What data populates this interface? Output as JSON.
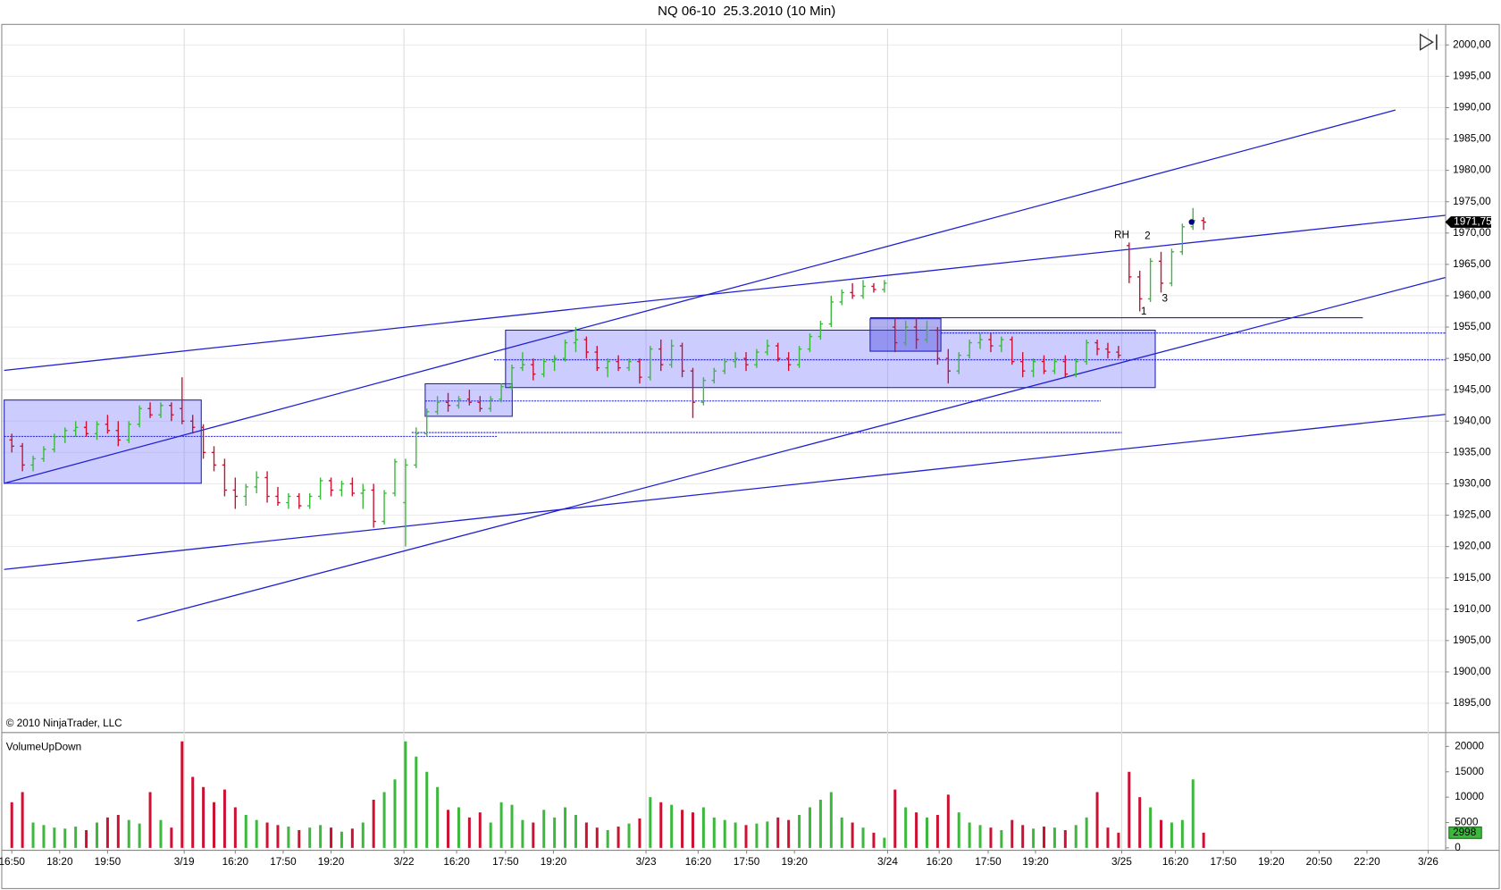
{
  "chart_data": [
    {
      "type": "ohlc",
      "title": "NQ 06-10  25.3.2010 (10 Min)",
      "watermark": "© 2010 NinjaTrader, LLC",
      "up_color": "#3cb83c",
      "down_color": "#cc1133",
      "grid": true,
      "xlim": [
        -1.8,
        269.4
      ],
      "ylim": [
        1890.4,
        2003.2
      ],
      "yticks": [
        {
          "value": 1895,
          "label": "1895,00"
        },
        {
          "value": 1900,
          "label": "1900,00"
        },
        {
          "value": 1905,
          "label": "1905,00"
        },
        {
          "value": 1910,
          "label": "1910,00"
        },
        {
          "value": 1915,
          "label": "1915,00"
        },
        {
          "value": 1920,
          "label": "1920,00"
        },
        {
          "value": 1925,
          "label": "1925,00"
        },
        {
          "value": 1930,
          "label": "1930,00"
        },
        {
          "value": 1935,
          "label": "1935,00"
        },
        {
          "value": 1940,
          "label": "1940,00"
        },
        {
          "value": 1945,
          "label": "1945,00"
        },
        {
          "value": 1950,
          "label": "1950,00"
        },
        {
          "value": 1955,
          "label": "1955,00"
        },
        {
          "value": 1960,
          "label": "1960,00"
        },
        {
          "value": 1965,
          "label": "1965,00"
        },
        {
          "value": 1970,
          "label": "1970,00"
        },
        {
          "value": 1975,
          "label": "1975,00"
        },
        {
          "value": 1980,
          "label": "1980,00"
        },
        {
          "value": 1985,
          "label": "1985,00"
        },
        {
          "value": 1990,
          "label": "1990,00"
        },
        {
          "value": 1995,
          "label": "1995,00"
        },
        {
          "value": 2000,
          "label": "2000,00"
        }
      ],
      "xticks": [
        {
          "value": 0,
          "label": "16:50"
        },
        {
          "value": 9,
          "label": "18:20"
        },
        {
          "value": 18,
          "label": "19:50"
        },
        {
          "value": 32.4,
          "label": "3/19"
        },
        {
          "value": 42,
          "label": "16:20"
        },
        {
          "value": 51,
          "label": "17:50"
        },
        {
          "value": 60,
          "label": "19:20"
        },
        {
          "value": 73.7,
          "label": "3/22"
        },
        {
          "value": 83.6,
          "label": "16:20"
        },
        {
          "value": 92.8,
          "label": "17:50"
        },
        {
          "value": 101.8,
          "label": "19:20"
        },
        {
          "value": 119.2,
          "label": "3/23"
        },
        {
          "value": 129,
          "label": "16:20"
        },
        {
          "value": 138.1,
          "label": "17:50"
        },
        {
          "value": 147.1,
          "label": "19:20"
        },
        {
          "value": 164.6,
          "label": "3/24"
        },
        {
          "value": 174.3,
          "label": "16:20"
        },
        {
          "value": 183.5,
          "label": "17:50"
        },
        {
          "value": 192.4,
          "label": "19:20"
        },
        {
          "value": 208.6,
          "label": "3/25"
        },
        {
          "value": 218.7,
          "label": "16:20"
        },
        {
          "value": 227.7,
          "label": "17:50"
        },
        {
          "value": 236.7,
          "label": "19:20"
        },
        {
          "value": 245.7,
          "label": "20:50"
        },
        {
          "value": 254.7,
          "label": "22:20"
        },
        {
          "value": 266.2,
          "label": "3/26"
        }
      ],
      "last_value": {
        "value": 1971.75,
        "label": "1971,75"
      },
      "annotations": [
        "RH",
        "1",
        "2",
        "3"
      ],
      "x": [
        0,
        2,
        4,
        6,
        8,
        10,
        12,
        14,
        16,
        18,
        20,
        22,
        24,
        26,
        28,
        30,
        32,
        34,
        36,
        38,
        40,
        42,
        44,
        46,
        48,
        50,
        52,
        54,
        56,
        58,
        60,
        62,
        64,
        66,
        68,
        70,
        72,
        74,
        76,
        78,
        80,
        82,
        84,
        86,
        88,
        90,
        92,
        94,
        96,
        98,
        100,
        102,
        104,
        106,
        108,
        110,
        112,
        114,
        116,
        118,
        120,
        122,
        124,
        126,
        128,
        130,
        132,
        134,
        136,
        138,
        140,
        142,
        144,
        146,
        148,
        150,
        152,
        154,
        156,
        158,
        160,
        162,
        164,
        166,
        168,
        170,
        172,
        174,
        176,
        178,
        180,
        182,
        184,
        186,
        188,
        190,
        192,
        194,
        196,
        198,
        200,
        202,
        204,
        206,
        208,
        210,
        212,
        214,
        216,
        218,
        220,
        222,
        224
      ],
      "bars": [
        [
          1937,
          1938,
          1935,
          1936
        ],
        [
          1936,
          1936.5,
          1932,
          1933
        ],
        [
          1933,
          1934.5,
          1932,
          1934
        ],
        [
          1934,
          1936,
          1933.5,
          1935.5
        ],
        [
          1935.5,
          1938,
          1935,
          1937.5
        ],
        [
          1937.5,
          1939,
          1936.5,
          1938.5
        ],
        [
          1938.5,
          1940,
          1937.5,
          1939
        ],
        [
          1939,
          1940,
          1937.5,
          1938
        ],
        [
          1938,
          1940,
          1937,
          1939.5
        ],
        [
          1939.5,
          1941,
          1938,
          1938.5
        ],
        [
          1938.5,
          1940,
          1936,
          1937
        ],
        [
          1937,
          1940,
          1936.5,
          1939.5
        ],
        [
          1939.5,
          1942.5,
          1939,
          1942
        ],
        [
          1942,
          1943,
          1940.5,
          1941
        ],
        [
          1941,
          1943,
          1940.5,
          1942.5
        ],
        [
          1942.5,
          1943,
          1940,
          1941
        ],
        [
          1942,
          1947,
          1939.5,
          1940
        ],
        [
          1940,
          1941,
          1938,
          1939
        ],
        [
          1939,
          1939.5,
          1934,
          1935
        ],
        [
          1935,
          1936,
          1932,
          1933
        ],
        [
          1933,
          1934,
          1928,
          1929
        ],
        [
          1929,
          1931,
          1926,
          1928
        ],
        [
          1928,
          1930,
          1926.5,
          1929.5
        ],
        [
          1929.5,
          1932,
          1928.5,
          1931
        ],
        [
          1931,
          1932,
          1927,
          1928
        ],
        [
          1928,
          1929.5,
          1926.5,
          1927
        ],
        [
          1927,
          1928.5,
          1926,
          1928
        ],
        [
          1928,
          1928.5,
          1926,
          1926.5
        ],
        [
          1926.5,
          1928.5,
          1926,
          1928
        ],
        [
          1928,
          1931,
          1927.5,
          1930.5
        ],
        [
          1930.5,
          1931,
          1928,
          1929
        ],
        [
          1929,
          1930.5,
          1928,
          1930
        ],
        [
          1930,
          1931,
          1928,
          1928.5
        ],
        [
          1928.5,
          1930,
          1926,
          1929
        ],
        [
          1929,
          1930,
          1923,
          1924
        ],
        [
          1924,
          1929,
          1923.5,
          1928.5
        ],
        [
          1928.5,
          1934,
          1928,
          1933.5
        ],
        [
          1927,
          1934,
          1920,
          1933
        ],
        [
          1933,
          1939,
          1932.5,
          1938
        ],
        [
          1938,
          1942,
          1937.5,
          1941.5
        ],
        [
          1941.5,
          1944,
          1941,
          1943
        ],
        [
          1943,
          1944.5,
          1941.5,
          1942.5
        ],
        [
          1942.5,
          1944,
          1942,
          1943.5
        ],
        [
          1943.5,
          1945,
          1942.5,
          1943
        ],
        [
          1943,
          1944,
          1941.5,
          1942
        ],
        [
          1942,
          1944,
          1941.5,
          1943.5
        ],
        [
          1943.5,
          1946,
          1943,
          1945.5
        ],
        [
          1945.5,
          1949,
          1945,
          1948.5
        ],
        [
          1948.5,
          1951,
          1948,
          1949
        ],
        [
          1949,
          1950,
          1946.5,
          1947.5
        ],
        [
          1947.5,
          1950,
          1947,
          1949.5
        ],
        [
          1949.5,
          1950.5,
          1948,
          1950
        ],
        [
          1950,
          1953,
          1949.5,
          1952.5
        ],
        [
          1952.5,
          1955,
          1951,
          1953
        ],
        [
          1953,
          1953.5,
          1950,
          1951
        ],
        [
          1951,
          1952,
          1948,
          1948.5
        ],
        [
          1948.5,
          1950,
          1947,
          1949.5
        ],
        [
          1949.5,
          1950.5,
          1948,
          1948.5
        ],
        [
          1948.5,
          1950,
          1948,
          1949.5
        ],
        [
          1949.5,
          1950,
          1946,
          1947
        ],
        [
          1947,
          1952,
          1946.5,
          1951.5
        ],
        [
          1951.5,
          1953,
          1948,
          1949
        ],
        [
          1949,
          1953,
          1948.5,
          1952
        ],
        [
          1952,
          1952.5,
          1947,
          1948
        ],
        [
          1948,
          1948.5,
          1940.5,
          1943
        ],
        [
          1943,
          1947,
          1942.5,
          1946.5
        ],
        [
          1946.5,
          1948.5,
          1946,
          1948
        ],
        [
          1948,
          1950,
          1947.5,
          1949.5
        ],
        [
          1949.5,
          1951,
          1948.5,
          1950
        ],
        [
          1950,
          1951,
          1948,
          1949
        ],
        [
          1949,
          1951.5,
          1948.5,
          1951
        ],
        [
          1951,
          1953,
          1950.5,
          1952
        ],
        [
          1952,
          1952.5,
          1949.5,
          1950
        ],
        [
          1950,
          1951,
          1948,
          1949
        ],
        [
          1949,
          1952,
          1948.5,
          1951.5
        ],
        [
          1951.5,
          1954,
          1951,
          1953.5
        ],
        [
          1953.5,
          1956,
          1953,
          1955.5
        ],
        [
          1955.5,
          1960,
          1955,
          1959
        ],
        [
          1959,
          1961,
          1958.5,
          1960.5
        ],
        [
          1960.5,
          1962,
          1959.5,
          1960
        ],
        [
          1960,
          1962.5,
          1959.5,
          1961.5
        ],
        [
          1961.5,
          1962,
          1960.5,
          1961
        ],
        [
          1961,
          1962.5,
          1960.5,
          1962
        ],
        [
          1955,
          1956.5,
          1951,
          1952.5
        ],
        [
          1952.5,
          1956,
          1952,
          1955
        ],
        [
          1955,
          1956.5,
          1951.5,
          1953
        ],
        [
          1953,
          1956,
          1952.5,
          1954.5
        ],
        [
          1954.5,
          1955,
          1949,
          1950
        ],
        [
          1950,
          1951.5,
          1946,
          1948
        ],
        [
          1948,
          1951,
          1947.5,
          1950.5
        ],
        [
          1950.5,
          1953,
          1950,
          1952.5
        ],
        [
          1952.5,
          1954,
          1951.5,
          1953
        ],
        [
          1953,
          1954,
          1951,
          1952
        ],
        [
          1952,
          1953.5,
          1951,
          1953
        ],
        [
          1953,
          1953.5,
          1949,
          1949.5
        ],
        [
          1949.5,
          1951,
          1947,
          1948
        ],
        [
          1948,
          1950,
          1947,
          1949.5
        ],
        [
          1949.5,
          1950.5,
          1947.5,
          1948
        ],
        [
          1948,
          1950,
          1947.5,
          1949.5
        ],
        [
          1949.5,
          1950.5,
          1947,
          1947.5
        ],
        [
          1947.5,
          1950,
          1947,
          1949.5
        ],
        [
          1949.5,
          1953,
          1949,
          1952.5
        ],
        [
          1952.5,
          1953,
          1950.5,
          1951.5
        ],
        [
          1951.5,
          1952.5,
          1950,
          1951
        ],
        [
          1951,
          1952,
          1950,
          1950.5
        ],
        [
          1968,
          1968.5,
          1962,
          1963
        ],
        [
          1963,
          1964,
          1957.5,
          1959.5
        ],
        [
          1959.5,
          1966,
          1959,
          1965.5
        ],
        [
          1965.5,
          1967,
          1960.5,
          1962
        ],
        [
          1962,
          1967.5,
          1961.5,
          1967
        ],
        [
          1967,
          1971.5,
          1966.5,
          1971
        ],
        [
          1971,
          1974,
          1970.5,
          1972
        ],
        [
          1972,
          1972.5,
          1970.5,
          1971.75
        ]
      ]
    },
    {
      "type": "volume",
      "title": "VolumeUpDown",
      "xlim": [
        -1.8,
        269.4
      ],
      "ylim": [
        -377,
        22453
      ],
      "yticks": [
        0,
        5000,
        10000,
        15000,
        20000
      ],
      "last_value": 2998,
      "x": [
        0,
        2,
        4,
        6,
        8,
        10,
        12,
        14,
        16,
        18,
        20,
        22,
        24,
        26,
        28,
        30,
        32,
        34,
        36,
        38,
        40,
        42,
        44,
        46,
        48,
        50,
        52,
        54,
        56,
        58,
        60,
        62,
        64,
        66,
        68,
        70,
        72,
        74,
        76,
        78,
        80,
        82,
        84,
        86,
        88,
        90,
        92,
        94,
        96,
        98,
        100,
        102,
        104,
        106,
        108,
        110,
        112,
        114,
        116,
        118,
        120,
        122,
        124,
        126,
        128,
        130,
        132,
        134,
        136,
        138,
        140,
        142,
        144,
        146,
        148,
        150,
        152,
        154,
        156,
        158,
        160,
        162,
        164,
        166,
        168,
        170,
        172,
        174,
        176,
        178,
        180,
        182,
        184,
        186,
        188,
        190,
        192,
        194,
        196,
        198,
        200,
        202,
        204,
        206,
        208,
        210,
        212,
        214,
        216,
        218,
        220,
        222,
        224
      ],
      "values": [
        9000,
        11000,
        5000,
        4500,
        4000,
        3800,
        4200,
        3500,
        5000,
        6000,
        6500,
        5500,
        4800,
        11000,
        5500,
        4000,
        21000,
        14000,
        12000,
        9000,
        11500,
        8000,
        6500,
        5500,
        5000,
        4500,
        4200,
        3500,
        4000,
        4500,
        4000,
        3200,
        3800,
        5000,
        9500,
        11000,
        13500,
        21000,
        18000,
        15000,
        12000,
        7500,
        8000,
        6000,
        7000,
        5000,
        9000,
        8500,
        5500,
        5000,
        7500,
        6000,
        8000,
        6500,
        5000,
        4000,
        3500,
        4200,
        4800,
        5800,
        10000,
        9000,
        8500,
        7500,
        7000,
        8000,
        6000,
        5500,
        5000,
        4500,
        4800,
        5200,
        6000,
        5500,
        6500,
        8000,
        9500,
        11000,
        6000,
        5000,
        4000,
        3000,
        2000,
        11500,
        8000,
        7000,
        6000,
        6500,
        10500,
        7000,
        5000,
        4500,
        4000,
        3500,
        5500,
        4500,
        3800,
        4200,
        4000,
        3500,
        4500,
        6000,
        11000,
        4000,
        3000,
        15000,
        10000,
        8000,
        5500,
        5000,
        5500,
        13500,
        2998
      ]
    }
  ]
}
